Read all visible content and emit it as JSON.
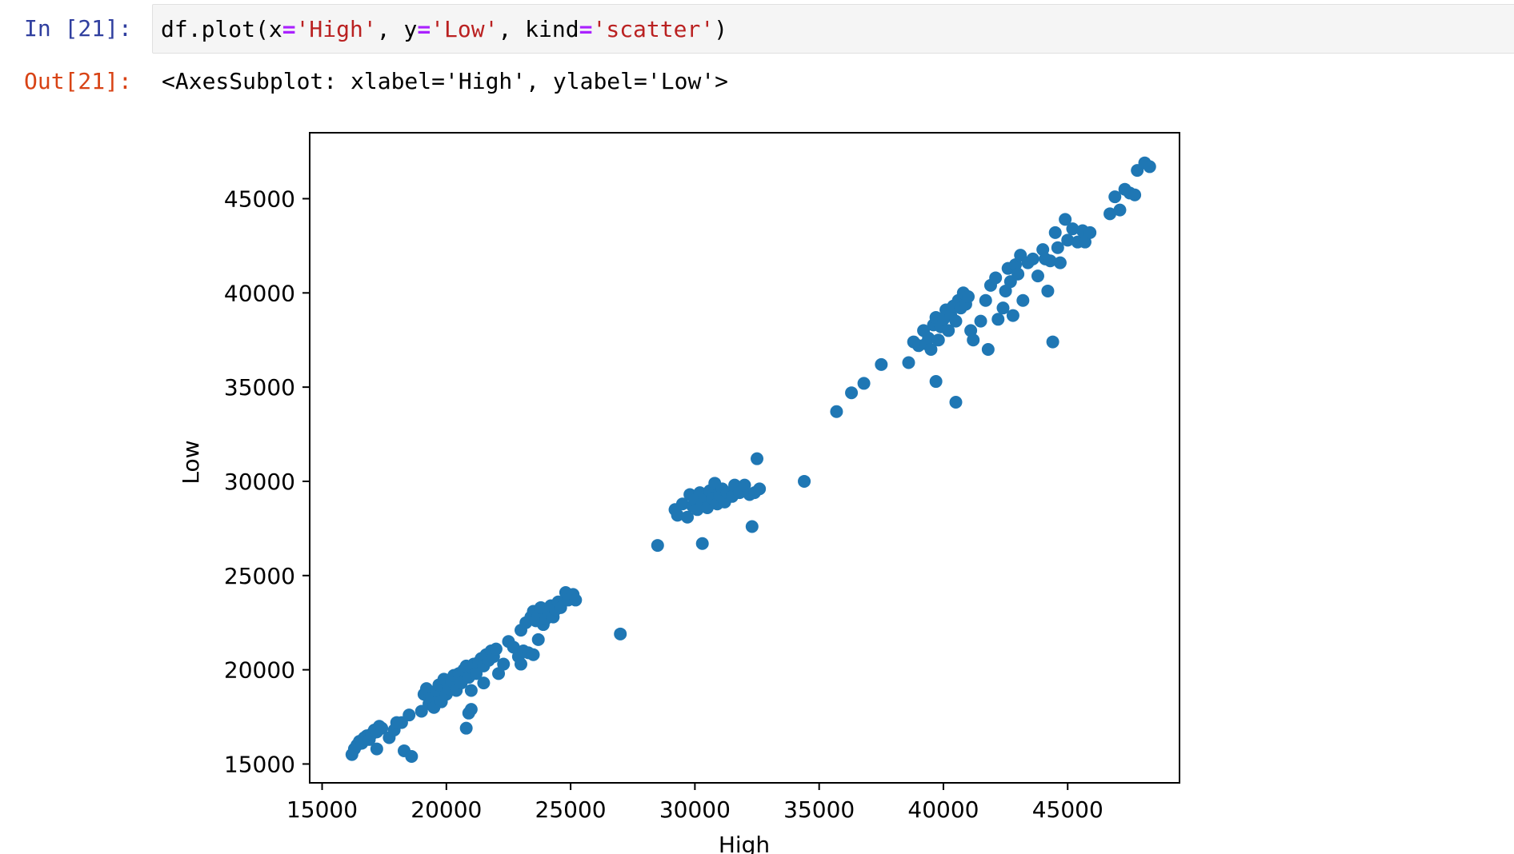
{
  "cell": {
    "in_prompt": "In [21]:",
    "out_prompt": "Out[21]:",
    "code": {
      "prefix": "df.plot(x",
      "eq1": "=",
      "str1": "'High'",
      "mid1": ", y",
      "eq2": "=",
      "str2": "'Low'",
      "mid2": ", kind",
      "eq3": "=",
      "str3": "'scatter'",
      "suffix": ")"
    },
    "output_text": "<AxesSubplot: xlabel='High', ylabel='Low'>"
  },
  "colors": {
    "marker": "#1f77b4",
    "in_prompt": "#303f9f",
    "out_prompt": "#d84315"
  },
  "chart_data": {
    "type": "scatter",
    "title": "",
    "xlabel": "High",
    "ylabel": "Low",
    "xlim": [
      14500,
      49500
    ],
    "ylim": [
      14000,
      48500
    ],
    "xticks": [
      15000,
      20000,
      25000,
      30000,
      35000,
      40000,
      45000
    ],
    "yticks": [
      15000,
      20000,
      25000,
      30000,
      35000,
      40000,
      45000
    ],
    "tick_labels_x": [
      "15000",
      "20000",
      "25000",
      "30000",
      "35000",
      "40000",
      "45000"
    ],
    "tick_labels_y": [
      "15000",
      "20000",
      "25000",
      "30000",
      "35000",
      "40000",
      "45000"
    ],
    "grid": false,
    "legend": false,
    "series": [
      {
        "points": [
          [
            16200,
            15500
          ],
          [
            16300,
            15800
          ],
          [
            16400,
            16000
          ],
          [
            16500,
            16200
          ],
          [
            16600,
            16100
          ],
          [
            16700,
            16400
          ],
          [
            16800,
            16500
          ],
          [
            16900,
            16300
          ],
          [
            17000,
            16600
          ],
          [
            17100,
            16800
          ],
          [
            17200,
            16700
          ],
          [
            17300,
            17000
          ],
          [
            17400,
            16900
          ],
          [
            17200,
            15800
          ],
          [
            17700,
            16400
          ],
          [
            17900,
            16800
          ],
          [
            18200,
            17200
          ],
          [
            18500,
            17600
          ],
          [
            18000,
            17200
          ],
          [
            18300,
            15700
          ],
          [
            18600,
            15400
          ],
          [
            19000,
            17800
          ],
          [
            19100,
            18700
          ],
          [
            19200,
            19000
          ],
          [
            19300,
            18200
          ],
          [
            19400,
            18500
          ],
          [
            19500,
            18000
          ],
          [
            19600,
            18900
          ],
          [
            19700,
            19200
          ],
          [
            19800,
            18300
          ],
          [
            19900,
            19500
          ],
          [
            20000,
            18700
          ],
          [
            20100,
            19000
          ],
          [
            20200,
            19400
          ],
          [
            20300,
            19700
          ],
          [
            20400,
            18900
          ],
          [
            20500,
            19800
          ],
          [
            20600,
            19300
          ],
          [
            20700,
            20000
          ],
          [
            20800,
            20200
          ],
          [
            20900,
            19600
          ],
          [
            21000,
            20100
          ],
          [
            21100,
            20300
          ],
          [
            21200,
            19800
          ],
          [
            21300,
            20400
          ],
          [
            21400,
            20600
          ],
          [
            21500,
            20200
          ],
          [
            21600,
            20800
          ],
          [
            21700,
            20500
          ],
          [
            21800,
            21000
          ],
          [
            21900,
            20700
          ],
          [
            22000,
            21100
          ],
          [
            21000,
            18900
          ],
          [
            20900,
            17700
          ],
          [
            21000,
            17900
          ],
          [
            20800,
            16900
          ],
          [
            21500,
            19300
          ],
          [
            22100,
            19800
          ],
          [
            22300,
            20300
          ],
          [
            22500,
            21500
          ],
          [
            22700,
            21200
          ],
          [
            22900,
            20700
          ],
          [
            23000,
            20300
          ],
          [
            23100,
            21000
          ],
          [
            23300,
            20900
          ],
          [
            23500,
            20800
          ],
          [
            23000,
            22100
          ],
          [
            23200,
            22500
          ],
          [
            23400,
            22800
          ],
          [
            23500,
            23100
          ],
          [
            23600,
            22600
          ],
          [
            23700,
            22900
          ],
          [
            23800,
            23300
          ],
          [
            23900,
            22400
          ],
          [
            24000,
            22700
          ],
          [
            24100,
            23000
          ],
          [
            24200,
            23400
          ],
          [
            24300,
            22800
          ],
          [
            24400,
            23200
          ],
          [
            24500,
            23600
          ],
          [
            24600,
            23300
          ],
          [
            24800,
            24100
          ],
          [
            24900,
            23700
          ],
          [
            25100,
            24000
          ],
          [
            25200,
            23700
          ],
          [
            23700,
            21600
          ],
          [
            27000,
            21900
          ],
          [
            28500,
            26600
          ],
          [
            29200,
            28500
          ],
          [
            29300,
            28200
          ],
          [
            29500,
            28800
          ],
          [
            29700,
            28100
          ],
          [
            29800,
            29300
          ],
          [
            29900,
            28700
          ],
          [
            30000,
            29000
          ],
          [
            30100,
            28500
          ],
          [
            30200,
            29400
          ],
          [
            30300,
            28800
          ],
          [
            30400,
            29200
          ],
          [
            30500,
            28600
          ],
          [
            30600,
            29500
          ],
          [
            30700,
            29100
          ],
          [
            30800,
            29900
          ],
          [
            30900,
            28800
          ],
          [
            31000,
            29300
          ],
          [
            31100,
            29600
          ],
          [
            31200,
            28900
          ],
          [
            31300,
            29400
          ],
          [
            31500,
            29200
          ],
          [
            31600,
            29800
          ],
          [
            31800,
            29400
          ],
          [
            32000,
            29800
          ],
          [
            32200,
            29300
          ],
          [
            32400,
            29400
          ],
          [
            32600,
            29600
          ],
          [
            32500,
            31200
          ],
          [
            32300,
            27600
          ],
          [
            30300,
            26700
          ],
          [
            34400,
            30000
          ],
          [
            35700,
            33700
          ],
          [
            36300,
            34700
          ],
          [
            36800,
            35200
          ],
          [
            37500,
            36200
          ],
          [
            38600,
            36300
          ],
          [
            38800,
            37400
          ],
          [
            39000,
            37200
          ],
          [
            39200,
            38000
          ],
          [
            39300,
            37300
          ],
          [
            39400,
            37600
          ],
          [
            39500,
            37000
          ],
          [
            39600,
            38300
          ],
          [
            39700,
            38700
          ],
          [
            39800,
            37500
          ],
          [
            39900,
            38200
          ],
          [
            40000,
            38600
          ],
          [
            40100,
            39100
          ],
          [
            40200,
            38000
          ],
          [
            40300,
            38800
          ],
          [
            40400,
            39300
          ],
          [
            40500,
            38500
          ],
          [
            40600,
            39600
          ],
          [
            40700,
            39200
          ],
          [
            40800,
            40000
          ],
          [
            40900,
            39400
          ],
          [
            41000,
            39800
          ],
          [
            41100,
            38000
          ],
          [
            41200,
            37500
          ],
          [
            39700,
            35300
          ],
          [
            40500,
            34200
          ],
          [
            41500,
            38500
          ],
          [
            41700,
            39600
          ],
          [
            41900,
            40400
          ],
          [
            41800,
            37000
          ],
          [
            42100,
            40800
          ],
          [
            42200,
            38600
          ],
          [
            42400,
            39200
          ],
          [
            42500,
            40100
          ],
          [
            42600,
            41300
          ],
          [
            42700,
            40600
          ],
          [
            42800,
            38800
          ],
          [
            42900,
            41500
          ],
          [
            43000,
            41000
          ],
          [
            43100,
            42000
          ],
          [
            43200,
            39600
          ],
          [
            43400,
            41600
          ],
          [
            43600,
            41800
          ],
          [
            43800,
            40900
          ],
          [
            44000,
            42300
          ],
          [
            44100,
            41800
          ],
          [
            44200,
            40100
          ],
          [
            44300,
            41700
          ],
          [
            44400,
            37400
          ],
          [
            44500,
            43200
          ],
          [
            44600,
            42400
          ],
          [
            44700,
            41600
          ],
          [
            44900,
            43900
          ],
          [
            45000,
            42800
          ],
          [
            45200,
            43400
          ],
          [
            45400,
            42700
          ],
          [
            45600,
            43300
          ],
          [
            45700,
            42700
          ],
          [
            45900,
            43200
          ],
          [
            46700,
            44200
          ],
          [
            46900,
            45100
          ],
          [
            47100,
            44400
          ],
          [
            47300,
            45500
          ],
          [
            47500,
            45300
          ],
          [
            47700,
            45200
          ],
          [
            47800,
            46500
          ],
          [
            48100,
            46900
          ],
          [
            48300,
            46700
          ]
        ]
      }
    ]
  }
}
